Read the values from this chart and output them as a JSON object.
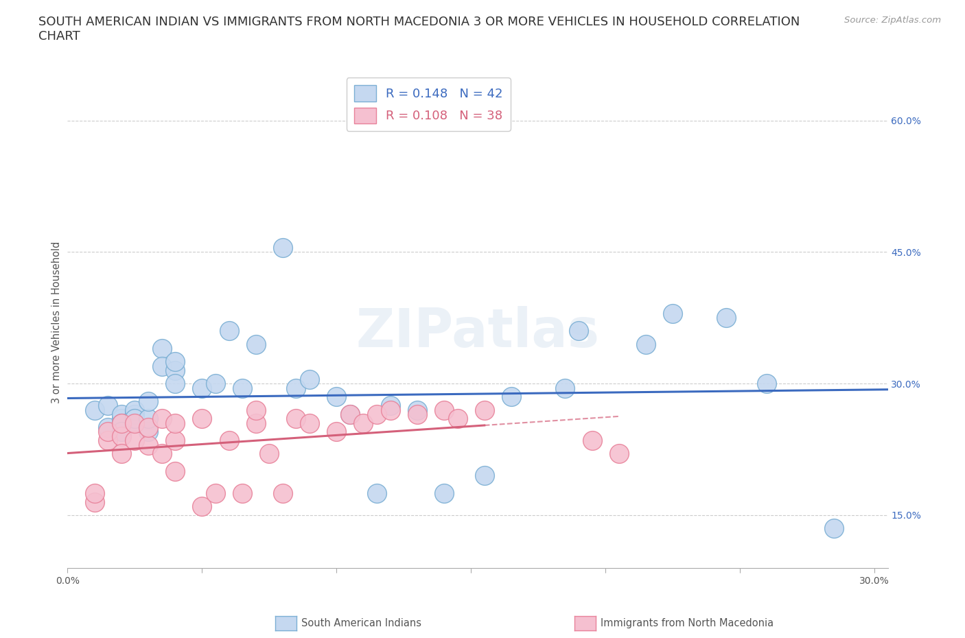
{
  "title": "SOUTH AMERICAN INDIAN VS IMMIGRANTS FROM NORTH MACEDONIA 3 OR MORE VEHICLES IN HOUSEHOLD CORRELATION\nCHART",
  "source": "Source: ZipAtlas.com",
  "ylabel": "3 or more Vehicles in Household",
  "xlim": [
    0.0,
    0.305
  ],
  "ylim": [
    0.09,
    0.65
  ],
  "xticks": [
    0.0,
    0.05,
    0.1,
    0.15,
    0.2,
    0.25,
    0.3
  ],
  "xticklabels": [
    "0.0%",
    "",
    "",
    "",
    "",
    "",
    "30.0%"
  ],
  "yticks_right": [
    0.15,
    0.3,
    0.45,
    0.6
  ],
  "yticklabels_right": [
    "15.0%",
    "30.0%",
    "45.0%",
    "60.0%"
  ],
  "R1": 0.148,
  "N1": 42,
  "R2": 0.108,
  "N2": 38,
  "color1": "#c5d8f0",
  "color2": "#f5c0d0",
  "edge_color1": "#7bafd4",
  "edge_color2": "#e8829a",
  "line_color1": "#3b6abf",
  "line_color2": "#d4607a",
  "legend_label1": "South American Indians",
  "legend_label2": "Immigrants from North Macedonia",
  "scatter1_x": [
    0.01,
    0.015,
    0.015,
    0.02,
    0.02,
    0.02,
    0.02,
    0.025,
    0.025,
    0.025,
    0.025,
    0.03,
    0.03,
    0.03,
    0.035,
    0.035,
    0.04,
    0.04,
    0.04,
    0.05,
    0.055,
    0.06,
    0.065,
    0.07,
    0.08,
    0.085,
    0.09,
    0.1,
    0.105,
    0.115,
    0.12,
    0.13,
    0.14,
    0.155,
    0.165,
    0.185,
    0.19,
    0.215,
    0.225,
    0.245,
    0.26,
    0.285
  ],
  "scatter1_y": [
    0.27,
    0.25,
    0.275,
    0.26,
    0.265,
    0.255,
    0.245,
    0.255,
    0.265,
    0.27,
    0.26,
    0.245,
    0.26,
    0.28,
    0.34,
    0.32,
    0.315,
    0.325,
    0.3,
    0.295,
    0.3,
    0.36,
    0.295,
    0.345,
    0.455,
    0.295,
    0.305,
    0.285,
    0.265,
    0.175,
    0.275,
    0.27,
    0.175,
    0.195,
    0.285,
    0.295,
    0.36,
    0.345,
    0.38,
    0.375,
    0.3,
    0.135
  ],
  "scatter2_x": [
    0.01,
    0.01,
    0.015,
    0.015,
    0.02,
    0.02,
    0.02,
    0.025,
    0.025,
    0.03,
    0.03,
    0.035,
    0.035,
    0.04,
    0.04,
    0.04,
    0.05,
    0.05,
    0.055,
    0.06,
    0.065,
    0.07,
    0.07,
    0.075,
    0.08,
    0.085,
    0.09,
    0.1,
    0.105,
    0.11,
    0.115,
    0.12,
    0.13,
    0.14,
    0.145,
    0.155,
    0.195,
    0.205
  ],
  "scatter2_y": [
    0.165,
    0.175,
    0.235,
    0.245,
    0.24,
    0.255,
    0.22,
    0.235,
    0.255,
    0.23,
    0.25,
    0.22,
    0.26,
    0.2,
    0.235,
    0.255,
    0.16,
    0.26,
    0.175,
    0.235,
    0.175,
    0.255,
    0.27,
    0.22,
    0.175,
    0.26,
    0.255,
    0.245,
    0.265,
    0.255,
    0.265,
    0.27,
    0.265,
    0.27,
    0.26,
    0.27,
    0.235,
    0.22
  ],
  "watermark": "ZIPatlas",
  "background_color": "#ffffff",
  "grid_color": "#cccccc",
  "pink_line_solid_end": 0.155,
  "pink_line_end": 0.205
}
